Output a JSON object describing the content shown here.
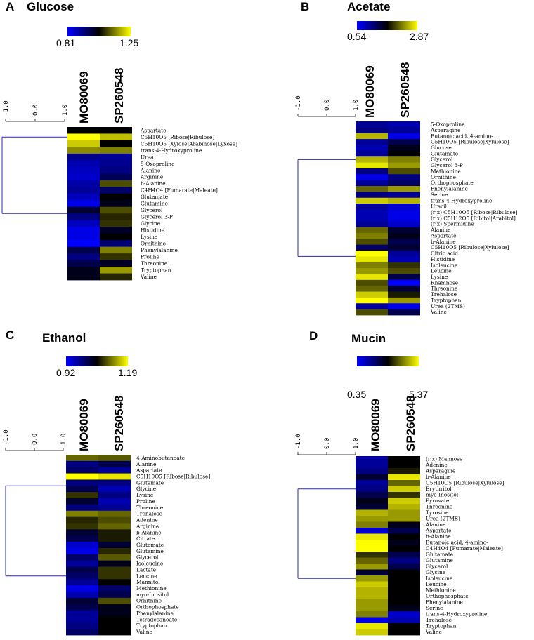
{
  "colormap": {
    "low": "#0000ff",
    "mid": "#000000",
    "high": "#ffff00"
  },
  "chart_data": [
    {
      "type": "heatmap",
      "panel": "A",
      "title": "Glucose",
      "scale_min": "0.81",
      "scale_max": "1.25",
      "dendrogram_axis": [
        "-1.0",
        "0.0",
        "1.0"
      ],
      "columns": [
        "MO80069",
        "SP260548"
      ],
      "rows": [
        "Aspartate",
        "C5H10O5 [Ribose|Ribulose]",
        "C5H10O5 [Xylose|Arabinose|Lyxose]",
        "trans-4-Hydroxyproline",
        "Urea",
        "5-Oxoproline",
        "Alanine",
        "Arginine",
        "b-Alanine",
        "C4H4O4 [Fumarate|Maleate]",
        "Glutamate",
        "Glutamine",
        "Glycerol",
        "Glycerol 3-P",
        "Glycine",
        "Histidine",
        "Lysine",
        "Ornithine",
        "Phenylalanine",
        "Proline",
        "Threonine",
        "Tryptophan",
        "Valine"
      ],
      "values": [
        [
          0.0,
          0.0
        ],
        [
          1.0,
          0.75
        ],
        [
          0.8,
          0.0
        ],
        [
          0.55,
          0.5
        ],
        [
          -0.55,
          -0.6
        ],
        [
          -0.7,
          -0.55
        ],
        [
          -0.75,
          -0.5
        ],
        [
          -0.8,
          -0.35
        ],
        [
          -0.65,
          0.3
        ],
        [
          -0.6,
          -0.4
        ],
        [
          -0.75,
          0.0
        ],
        [
          -0.9,
          -0.1
        ],
        [
          -0.2,
          0.3
        ],
        [
          -0.5,
          0.15
        ],
        [
          -0.75,
          0.2
        ],
        [
          -0.9,
          -0.15
        ],
        [
          -0.9,
          0.0
        ],
        [
          -1.0,
          -0.45
        ],
        [
          -0.3,
          0.5
        ],
        [
          -0.5,
          0.2
        ],
        [
          -0.3,
          -0.15
        ],
        [
          -0.1,
          0.6
        ],
        [
          -0.1,
          0.15
        ]
      ],
      "cluster_split_row": 3
    },
    {
      "type": "heatmap",
      "panel": "B",
      "title": "Acetate",
      "scale_min": "0.54",
      "scale_max": "2.87",
      "dendrogram_axis": [
        "-1.0",
        "0.0",
        "1.0"
      ],
      "columns": [
        "MO80069",
        "SP260548"
      ],
      "rows": [
        "5-Oxoproline",
        "Asparagine",
        "Butanoic acid, 4-amino-",
        "C5H10O5 [Ribulose|Xylulose]",
        "Glucose",
        "Glutamate",
        "Glycerol",
        "Glycerol 3-P",
        "Methionine",
        "Ornithine",
        "Orthophosphate",
        "Phenylalanine",
        "Serine",
        "trans-4-Hydroxyproline",
        "Uracil",
        "(r|x) C5H10O5 [Ribose|Ribulose]",
        "(r|x) C5H12O5 [Ribitol|Arabitol]",
        "(r|x) Spermidine",
        "Alanine",
        "Aspartate",
        "b-Alanine",
        "C5H10O5 [Ribulose|Xylulose]",
        "Citric acid",
        "Histidine",
        "Isoleucine",
        "Leucine",
        "Lysine",
        "Rhamnose",
        "Threonine",
        "Trehalose",
        "Tryptophan",
        "Urea (2TMS)",
        "Valine"
      ],
      "values": [
        [
          -0.6,
          -0.7
        ],
        [
          -0.5,
          -0.6
        ],
        [
          0.7,
          -0.9
        ],
        [
          -0.6,
          -0.3
        ],
        [
          -0.7,
          -0.1
        ],
        [
          -0.6,
          0.0
        ],
        [
          0.7,
          0.5
        ],
        [
          0.9,
          0.6
        ],
        [
          -0.5,
          0.3
        ],
        [
          -0.9,
          -0.5
        ],
        [
          -0.6,
          -0.4
        ],
        [
          0.4,
          0.6
        ],
        [
          -0.5,
          -0.6
        ],
        [
          0.8,
          0.7
        ],
        [
          -0.6,
          -0.8
        ],
        [
          -0.7,
          -0.9
        ],
        [
          -0.7,
          -0.9
        ],
        [
          -0.6,
          -0.8
        ],
        [
          0.4,
          -0.2
        ],
        [
          0.5,
          -0.1
        ],
        [
          0.3,
          -0.3
        ],
        [
          -0.4,
          -0.2
        ],
        [
          1.0,
          -0.6
        ],
        [
          0.9,
          -0.7
        ],
        [
          0.5,
          0.2
        ],
        [
          0.6,
          0.3
        ],
        [
          0.9,
          -0.3
        ],
        [
          0.3,
          -1.0
        ],
        [
          0.4,
          -0.2
        ],
        [
          0.8,
          0.1
        ],
        [
          1.0,
          0.6
        ],
        [
          -0.6,
          -0.9
        ],
        [
          0.3,
          -0.3
        ]
      ],
      "cluster_split_row": 13
    },
    {
      "type": "heatmap",
      "panel": "C",
      "title": "Ethanol",
      "scale_min": "0.92",
      "scale_max": "1.19",
      "dendrogram_axis": [
        "-1.0",
        "0.0",
        "1.0"
      ],
      "columns": [
        "MO80069",
        "SP260548"
      ],
      "rows": [
        "4-Aminobutanoate",
        "Alanine",
        "Aspartate",
        "C5H10O5 [Ribose|Ribulose]",
        "Glutamate",
        "Glycine",
        "Lysine",
        "Proline",
        "Threonine",
        "Trehalose",
        "Adenine",
        "Arginine",
        "b-Alanine",
        "Citrate",
        "Glutamate",
        "Glutamine",
        "Glycerol",
        "Isoleucine",
        "Lactate",
        "Leucine",
        "Mannitol",
        "Methionine",
        "myo-Inositol",
        "Ornithine",
        "Orthophosphate",
        "Phenylalanine",
        "Tetradecanoate",
        "Tryptophan",
        "Valine"
      ],
      "values": [
        [
          0.4,
          0.35
        ],
        [
          -0.5,
          -0.3
        ],
        [
          -0.4,
          -0.6
        ],
        [
          1.0,
          0.9
        ],
        [
          -0.5,
          -0.5
        ],
        [
          -0.3,
          -0.7
        ],
        [
          0.2,
          -0.5
        ],
        [
          -0.2,
          -0.7
        ],
        [
          -0.5,
          -0.6
        ],
        [
          0.5,
          0.4
        ],
        [
          0.15,
          0.3
        ],
        [
          0.2,
          0.4
        ],
        [
          -0.2,
          0.1
        ],
        [
          -0.3,
          0.1
        ],
        [
          -0.8,
          -0.2
        ],
        [
          -0.9,
          0.15
        ],
        [
          -0.4,
          0.35
        ],
        [
          -0.6,
          -0.1
        ],
        [
          -0.3,
          0.2
        ],
        [
          -0.4,
          0.2
        ],
        [
          -0.6,
          0.0
        ],
        [
          -0.9,
          -0.4
        ],
        [
          -0.7,
          -0.3
        ],
        [
          -0.2,
          0.3
        ],
        [
          -0.3,
          -0.1
        ],
        [
          -0.6,
          -0.1
        ],
        [
          -0.6,
          0.0
        ],
        [
          -0.5,
          0.0
        ],
        [
          -0.4,
          0.0
        ]
      ],
      "cluster_split_row": 10
    },
    {
      "type": "heatmap",
      "panel": "D",
      "title": "Mucin",
      "scale_min": "0.35",
      "scale_max": "5.37",
      "dendrogram_axis": [
        "-1.0",
        "0.0",
        "1.0"
      ],
      "columns": [
        "MO80069",
        "SP260548"
      ],
      "rows": [
        "(r|x) Mannose",
        "Adenine",
        "Asparagine",
        "b-Alanine",
        "C5H10O5 [Ribulose|Xylulose]",
        "Erythritol",
        "myo-Inositol",
        "Pyruvate",
        "Threonine",
        "Tyrosine",
        "Urea (2TMS)",
        "Alanine",
        "Aspartate",
        "b-Alanine",
        "Butanoic acid, 4-amino-",
        "C4H4O4 [Fumarate|Maleate]",
        "Glutamate",
        "Glutamine",
        "Glycerol",
        "Glycine",
        "Isoleucine",
        "Leucine",
        "Methionine",
        "Orthophosphate",
        "Phenylalanine",
        "Serine",
        "trans-4-Hydroxyproline",
        "Trehalose",
        "Tryptophan",
        "Valine"
      ],
      "values": [
        [
          -0.6,
          0.0
        ],
        [
          -0.6,
          0.0
        ],
        [
          -0.5,
          0.1
        ],
        [
          -0.2,
          0.9
        ],
        [
          -0.6,
          0.4
        ],
        [
          -0.5,
          0.8
        ],
        [
          -0.3,
          0.2
        ],
        [
          -0.1,
          0.8
        ],
        [
          -0.2,
          0.7
        ],
        [
          0.7,
          0.6
        ],
        [
          0.6,
          0.6
        ],
        [
          0.5,
          -0.1
        ],
        [
          -0.8,
          -0.3
        ],
        [
          0.9,
          0.0
        ],
        [
          1.0,
          -0.1
        ],
        [
          1.0,
          0.0
        ],
        [
          0.2,
          -0.3
        ],
        [
          0.4,
          -0.5
        ],
        [
          0.6,
          -0.3
        ],
        [
          -0.2,
          0.0
        ],
        [
          0.6,
          0.0
        ],
        [
          0.8,
          0.0
        ],
        [
          0.7,
          0.0
        ],
        [
          0.7,
          0.0
        ],
        [
          0.6,
          0.0
        ],
        [
          0.6,
          -0.1
        ],
        [
          0.5,
          -0.8
        ],
        [
          -0.9,
          -0.7
        ],
        [
          0.9,
          0.0
        ],
        [
          0.8,
          0.0
        ]
      ],
      "cluster_split_row": 11
    }
  ]
}
